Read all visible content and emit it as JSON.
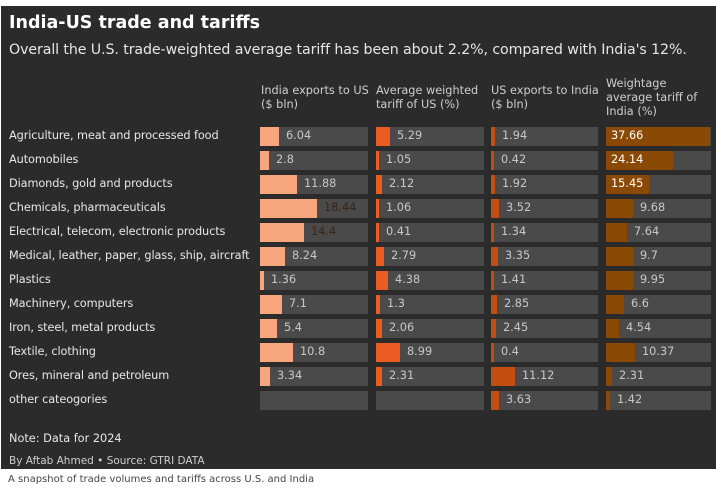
{
  "title": "India-US trade and tariffs",
  "subtitle": "Overall the U.S. trade-weighted average tariff has been about 2.2%, compared with India's 12%.",
  "note": "Note: Data for 2024",
  "credit": "By Aftab Ahmed • Source: GTRI DATA",
  "caption": "A snapshot of trade volumes and tariffs across U.S. and India",
  "colors": {
    "background": "#2b2b2b",
    "track": "#4a4a4a",
    "india_exports": "#f6a57c",
    "us_tariff": "#ea5c22",
    "us_exports": "#c24e12",
    "india_tariff": "#8a4a06"
  },
  "chart_data": {
    "type": "bar",
    "title": "India-US trade and tariffs",
    "categories": [
      "Agriculture, meat and processed food",
      "Automobiles",
      "Diamonds, gold and products",
      "Chemicals, pharmaceuticals",
      "Electrical, telecom, electronic products",
      "Medical, leather, paper, glass, ship, aircraft",
      "Plastics",
      "Machinery, computers",
      "Iron, steel, metal products",
      "Textile, clothing",
      "Ores, mineral and petroleum",
      "other cateogories"
    ],
    "series": [
      {
        "name": "India exports to US ($ bln)",
        "values": [
          6.04,
          2.8,
          11.88,
          18.44,
          14.4,
          8.24,
          1.36,
          7.1,
          5.4,
          10.8,
          3.34,
          null
        ],
        "labels": [
          "6.04",
          "2.8",
          "11.88",
          "18.44",
          "14.4",
          "8.24",
          "1.36",
          "7.1",
          "5.4",
          "10.8",
          "3.34",
          ""
        ],
        "max": 35
      },
      {
        "name": "Average weighted tariff of US (%)",
        "values": [
          5.29,
          1.05,
          2.12,
          1.06,
          0.41,
          2.79,
          4.38,
          1.3,
          2.06,
          8.99,
          2.31,
          null
        ],
        "labels": [
          "5.29",
          "1.05",
          "2.12",
          "1.06",
          "0.41",
          "2.79",
          "4.38",
          "1.3",
          "2.06",
          "8.99",
          "2.31",
          ""
        ],
        "max": 40
      },
      {
        "name": "US exports to India ($ bln)",
        "values": [
          1.94,
          0.42,
          1.92,
          3.52,
          1.34,
          3.35,
          1.41,
          2.85,
          2.45,
          0.4,
          11.12,
          3.63
        ],
        "labels": [
          "1.94",
          "0.42",
          "1.92",
          "3.52",
          "1.34",
          "3.35",
          "1.41",
          "2.85",
          "2.45",
          "0.4",
          "11.12",
          "3.63"
        ],
        "max": 50
      },
      {
        "name": "Weightage average tariff of India (%)",
        "values": [
          37.66,
          24.14,
          15.45,
          9.68,
          7.64,
          9.7,
          9.95,
          6.6,
          4.54,
          10.37,
          2.31,
          1.42
        ],
        "labels": [
          "37.66",
          "24.14",
          "15.45",
          "9.68",
          "7.64",
          "9.7",
          "9.95",
          "6.6",
          "4.54",
          "10.37",
          "2.31",
          "1.42"
        ],
        "max": 38
      }
    ]
  }
}
